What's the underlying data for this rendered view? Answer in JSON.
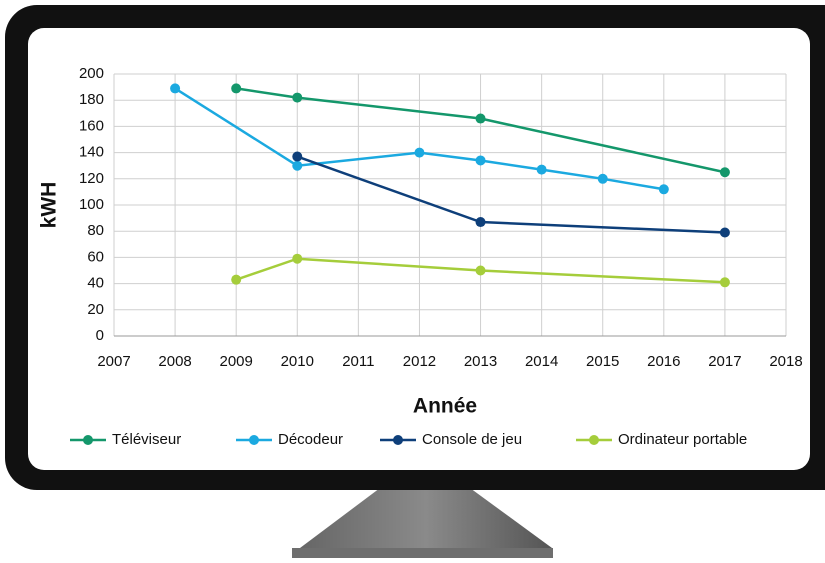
{
  "chart_data": {
    "type": "line",
    "xlabel": "Année",
    "ylabel": "kWH",
    "xlim": [
      2007,
      2018
    ],
    "xticks": [
      2007,
      2008,
      2009,
      2010,
      2011,
      2012,
      2013,
      2014,
      2015,
      2016,
      2017,
      2018
    ],
    "ylim": [
      0,
      200
    ],
    "yticks": [
      0,
      20,
      40,
      60,
      80,
      100,
      120,
      140,
      160,
      180,
      200
    ],
    "grid": true,
    "legend": "bottom",
    "series": [
      {
        "name": "Téléviseur",
        "color": "#14976b",
        "x": [
          2009,
          2010,
          2013,
          2017
        ],
        "values": [
          189,
          182,
          166,
          125
        ]
      },
      {
        "name": "Décodeur",
        "color": "#1ba9e0",
        "x": [
          2008,
          2010,
          2012,
          2013,
          2014,
          2015,
          2016
        ],
        "values": [
          189,
          130,
          140,
          134,
          127,
          120,
          112
        ]
      },
      {
        "name": "Console de jeu",
        "color": "#0e3f7a",
        "x": [
          2010,
          2013,
          2017
        ],
        "values": [
          137,
          87,
          79
        ]
      },
      {
        "name": "Ordinateur portable",
        "color": "#a5cd3b",
        "x": [
          2009,
          2010,
          2013,
          2017
        ],
        "values": [
          43,
          59,
          50,
          41
        ]
      }
    ]
  }
}
